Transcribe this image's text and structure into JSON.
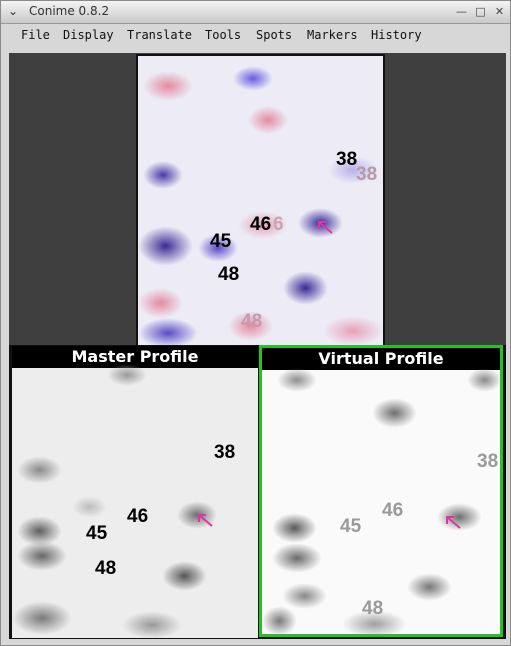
{
  "window": {
    "title": "Conime 0.8.2"
  },
  "menu": [
    "File",
    "Display",
    "Translate",
    "Tools",
    "Spots",
    "Markers",
    "History"
  ],
  "gel_top": {
    "labels": [
      "38",
      "38",
      "46",
      "6",
      "45",
      "48",
      "48"
    ]
  },
  "master_profile": {
    "header": "Master Profile",
    "labels": [
      "38",
      "46",
      "45",
      "48"
    ]
  },
  "virtual_profile": {
    "header": "Virtual Profile",
    "labels": [
      "38",
      "46",
      "45",
      "48"
    ]
  },
  "colors": {
    "virtual_border": "#22c322",
    "arrow": "#e0359e"
  }
}
